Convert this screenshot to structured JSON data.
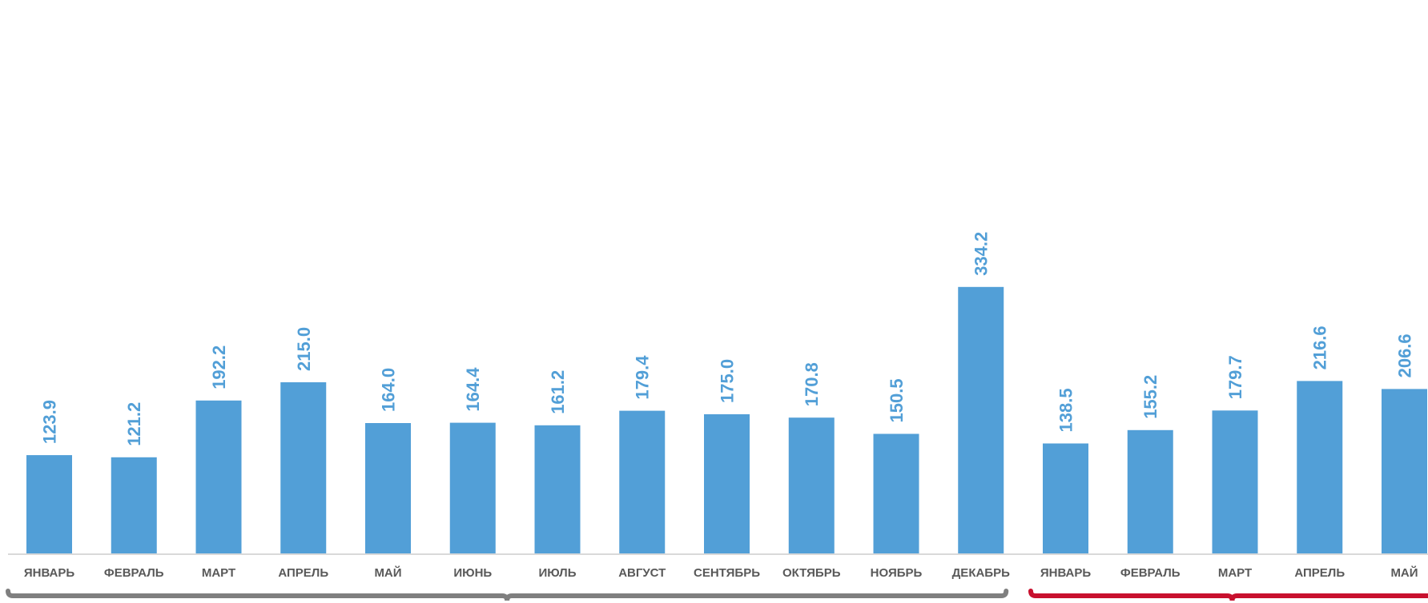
{
  "colors": {
    "bar": "#529fd7",
    "value_label": "#529fd7",
    "tick_label": "#595959",
    "axis": "#d9d9d9",
    "bracket_year1": "#7f7f7f",
    "bracket_year2": "#c8102e"
  },
  "chart_data": {
    "type": "bar",
    "title": "",
    "xlabel": "",
    "ylabel": "",
    "grid": false,
    "ylim": [
      0,
      345
    ],
    "categories": [
      "ЯНВАРЬ",
      "ФЕВРАЛЬ",
      "МАРТ",
      "АПРЕЛЬ",
      "МАЙ",
      "ИЮНЬ",
      "ИЮЛЬ",
      "АВГУСТ",
      "СЕНТЯБРЬ",
      "ОКТЯБРЬ",
      "НОЯБРЬ",
      "ДЕКАБРЬ",
      "ЯНВАРЬ",
      "ФЕВРАЛЬ",
      "МАРТ",
      "АПРЕЛЬ",
      "МАЙ"
    ],
    "values": [
      123.9,
      121.2,
      192.2,
      215.0,
      164.0,
      164.4,
      161.2,
      179.4,
      175.0,
      170.8,
      150.5,
      334.2,
      138.5,
      155.2,
      179.7,
      216.6,
      206.6
    ],
    "value_labels": [
      "123.9",
      "121.2",
      "192.2",
      "215.0",
      "164.0",
      "164.4",
      "161.2",
      "179.4",
      "175.0",
      "170.8",
      "150.5",
      "334.2",
      "138.5",
      "155.2",
      "179.7",
      "216.6",
      "206.6"
    ],
    "period_groups": [
      {
        "first_index": 0,
        "last_index": 11
      },
      {
        "first_index": 12,
        "last_index": 16
      }
    ]
  }
}
